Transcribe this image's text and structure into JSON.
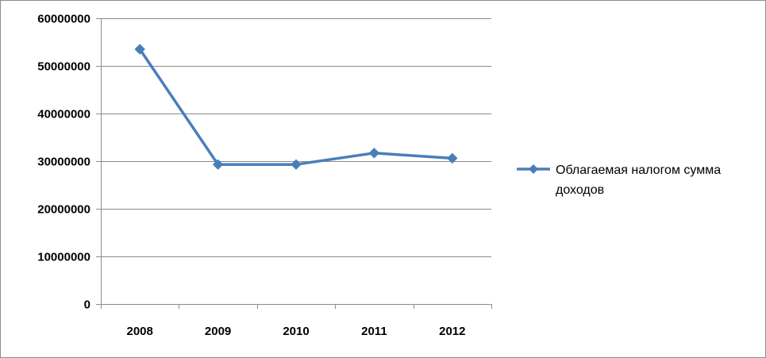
{
  "chart_data": {
    "type": "line",
    "categories": [
      "2008",
      "2009",
      "2010",
      "2011",
      "2012"
    ],
    "series": [
      {
        "name": "Облагаемая налогом сумма доходов",
        "name_lines": [
          "Облагаемая налогом сумма",
          "доходов"
        ],
        "values": [
          53500000,
          29300000,
          29300000,
          31700000,
          30600000
        ],
        "color": "#4a7ebb",
        "marker": "diamond"
      }
    ],
    "y_ticks": [
      "0",
      "10000000",
      "20000000",
      "30000000",
      "40000000",
      "50000000",
      "60000000"
    ],
    "ylim": [
      0,
      60000000
    ],
    "grid": "horizontal",
    "legend_position": "right",
    "title": "",
    "xlabel": "",
    "ylabel": ""
  }
}
